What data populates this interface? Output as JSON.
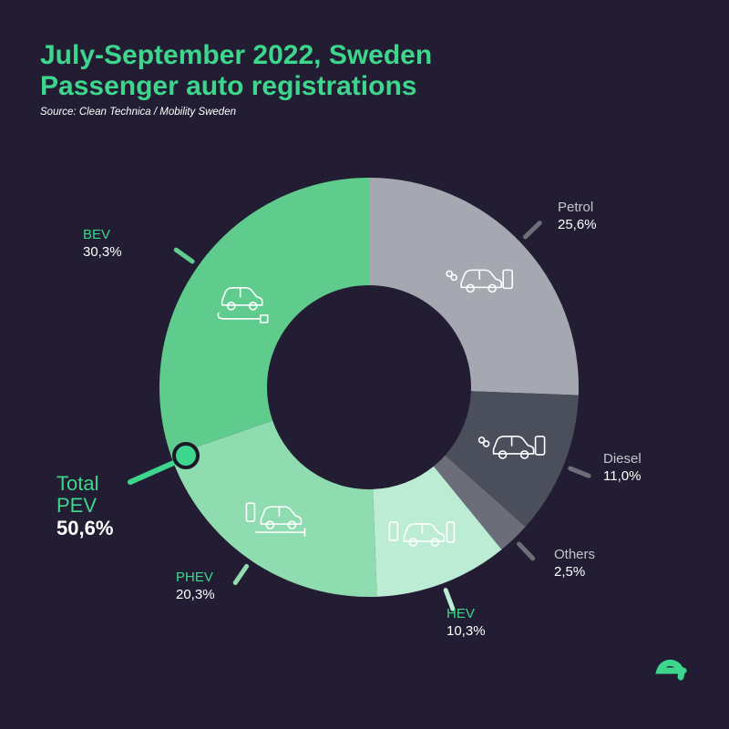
{
  "header": {
    "title_line1": "July-September 2022, Sweden",
    "title_line2": "Passenger auto registrations",
    "source": "Source: Clean Technica / Mobility Sweden"
  },
  "total_pev": {
    "label_line1": "Total",
    "label_line2": "PEV",
    "value": "50,6%",
    "percent": 50.6
  },
  "colors": {
    "background": "#221d33",
    "accent": "#3dd68c",
    "petrol": "#a6a8b1",
    "diesel": "#4b4f5c",
    "others": "#6b6d78",
    "hev": "#bcecd3",
    "phev": "#8fdcb0",
    "bev": "#5fcc8e"
  },
  "chart_data": {
    "type": "pie",
    "variant": "donut",
    "title": "July-September 2022, Sweden Passenger auto registrations",
    "start_angle": "top, clockwise",
    "categories": [
      "Petrol",
      "Diesel",
      "Others",
      "HEV",
      "PHEV",
      "BEV"
    ],
    "values": [
      25.6,
      11.0,
      2.5,
      10.3,
      20.3,
      30.3
    ],
    "value_labels": [
      "25,6%",
      "11,0%",
      "2,5%",
      "10,3%",
      "20,3%",
      "30,3%"
    ],
    "icons": [
      "petrol-car-icon",
      "diesel-car-icon",
      "",
      "hybrid-car-icon",
      "plugin-hybrid-car-icon",
      "electric-car-icon"
    ],
    "unit": "%"
  },
  "logo": {
    "icon": "brand-e-logo"
  }
}
